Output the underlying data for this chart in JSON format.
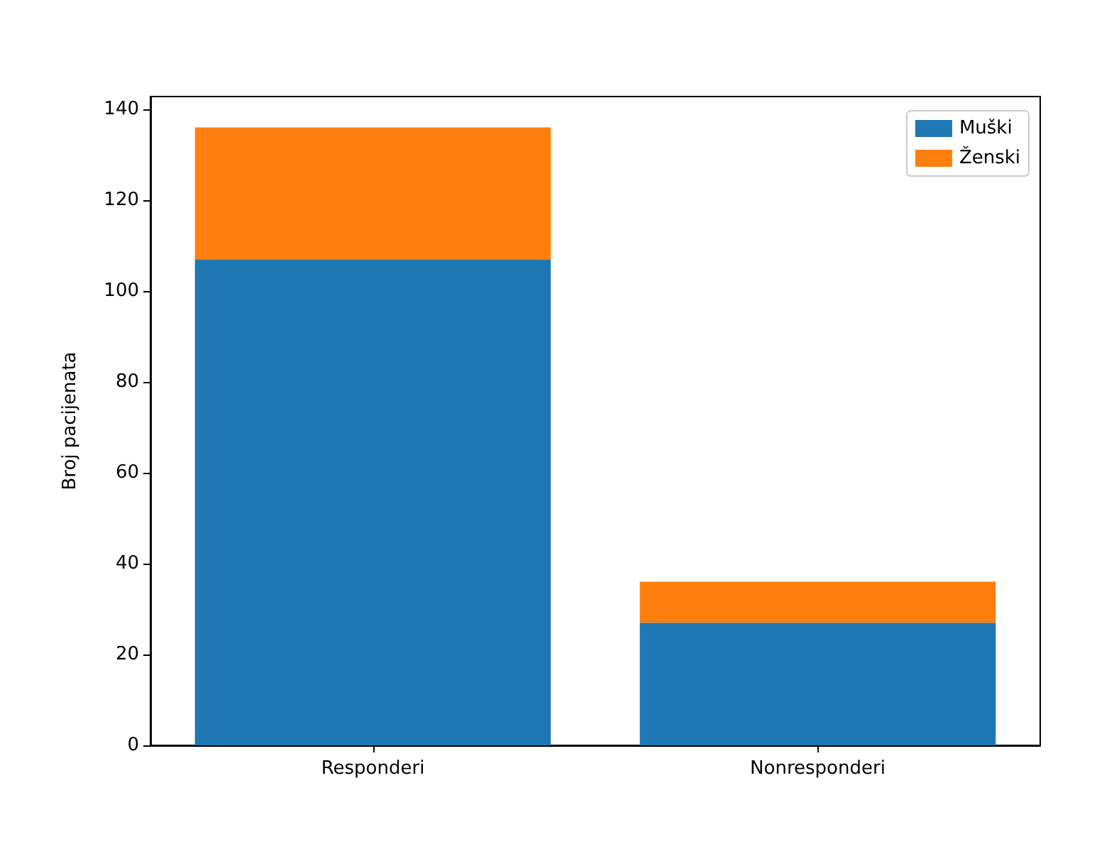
{
  "chart_data": {
    "type": "bar",
    "ylabel": "Broj pacijenata",
    "categories": [
      "Responderi",
      "Nonresponderi"
    ],
    "stacked": true,
    "series": [
      {
        "name": "Muški",
        "color": "#1f77b4",
        "values": [
          107,
          27
        ]
      },
      {
        "name": "Ženski",
        "color": "#ff7f0e",
        "values": [
          29,
          9
        ]
      }
    ],
    "ylim": [
      0,
      142.8
    ],
    "yticks": [
      0,
      20,
      40,
      60,
      80,
      100,
      120,
      140
    ],
    "grid": false,
    "legend": "top right"
  }
}
